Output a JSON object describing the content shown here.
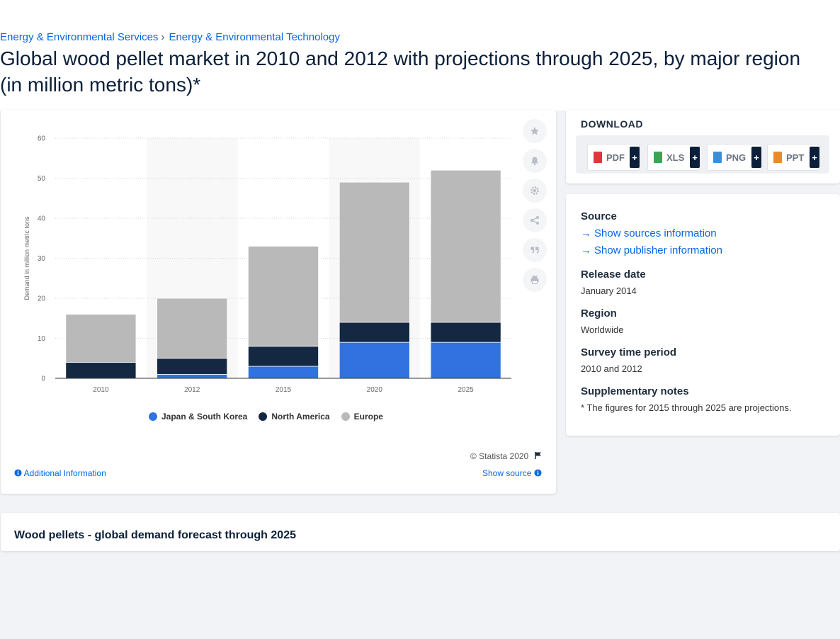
{
  "breadcrumb": {
    "item1": "Energy & Environmental Services",
    "separator": "›",
    "item2": "Energy & Environmental Technology"
  },
  "title": "Global wood pellet market in 2010 and 2012 with projections through 2025, by major region (in million metric tons)*",
  "tools": {
    "icons": [
      "star-icon",
      "bell-icon",
      "gear-icon",
      "share-icon",
      "quote-icon",
      "print-icon"
    ]
  },
  "chart_data": {
    "type": "bar",
    "stacked": true,
    "categories": [
      "2010",
      "2012",
      "2015",
      "2020",
      "2025"
    ],
    "series": [
      {
        "name": "Japan & South Korea",
        "color": "#3172e0",
        "values": [
          0,
          1,
          3,
          9,
          9
        ]
      },
      {
        "name": "North America",
        "color": "#142842",
        "values": [
          4,
          4,
          5,
          5,
          5
        ]
      },
      {
        "name": "Europe",
        "color": "#b9b9b9",
        "values": [
          12,
          15,
          25,
          35,
          38
        ]
      }
    ],
    "ylabel": "Demand in million metric tons",
    "xlabel": "",
    "ylim": [
      0,
      60
    ],
    "yticks": [
      "0",
      "10",
      "20",
      "30",
      "40",
      "50",
      "60"
    ],
    "grid": true,
    "legend_position": "bottom"
  },
  "footer": {
    "copyright": "© Statista 2020",
    "additional_info": "Additional Information",
    "show_source": "Show source"
  },
  "download": {
    "title": "DOWNLOAD",
    "buttons": [
      {
        "label": "PDF",
        "color": "#e0363a"
      },
      {
        "label": "XLS",
        "color": "#3aa655"
      },
      {
        "label": "PNG",
        "color": "#3a8fd8"
      },
      {
        "label": "PPT",
        "color": "#e88a2a"
      }
    ],
    "plus": "+"
  },
  "meta": {
    "source_label": "Source",
    "show_sources": "Show sources information",
    "show_publisher": "Show publisher information",
    "release_label": "Release date",
    "release_value": "January 2014",
    "region_label": "Region",
    "region_value": "Worldwide",
    "survey_label": "Survey time period",
    "survey_value": "2010 and 2012",
    "notes_label": "Supplementary notes",
    "notes_value": "* The figures for 2015 through 2025 are projections."
  },
  "related": {
    "title": "Wood pellets - global demand forecast through 2025"
  }
}
